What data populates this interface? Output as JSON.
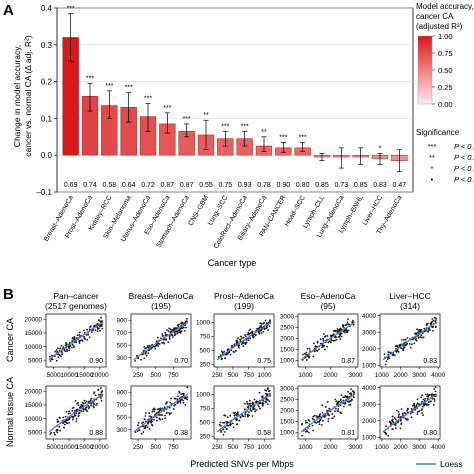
{
  "panel_a": {
    "label": "A",
    "ylabel_line1": "Change in model accuracy,",
    "ylabel_line2": "cancer vs. normal CA (Δ adj. R²)",
    "xlabel": "Cancer type",
    "colorbar_title": [
      "Model accuracy,",
      "cancer CA",
      "(adjusted R²)"
    ],
    "significance_title": "Significance",
    "significance_items": [
      {
        "stars": "***",
        "text": "P < 0."
      },
      {
        "stars": "**",
        "text": "P < 0."
      },
      {
        "stars": "*",
        "text": "P < 0."
      },
      {
        "stars": "•",
        "text": "P < 0."
      }
    ]
  },
  "panel_b": {
    "label": "B",
    "row_labels": [
      "Cancer CA",
      "Normal tissue CA"
    ],
    "xlabel": "Predicted SNVs per Mbps",
    "legend_label": "Loess"
  },
  "chart_data": [
    {
      "type": "bar",
      "title": "",
      "xlabel": "Cancer type",
      "ylabel": "Change in model accuracy, cancer vs. normal CA (Δ adj. R²)",
      "ylim": [
        -0.1,
        0.4
      ],
      "yticks": [
        -0.1,
        0.0,
        0.1,
        0.2,
        0.3,
        0.4
      ],
      "ytick_labels": [
        "–0.1",
        "0.0",
        "0.1",
        "0.2",
        "0.3",
        "0.4"
      ],
      "grid": true,
      "colorbar": {
        "min": 0,
        "max": 1,
        "ticks": [
          "0.00",
          "0.25",
          "0.50",
          "0.75",
          "1.00"
        ],
        "low_color": "#fdecec",
        "high_color": "#d7191c"
      },
      "categories": [
        "Breast–AdenoCa",
        "Prost–AdenoCa",
        "Kidney–RCC",
        "Skin–Melanoma",
        "Uterus–AdenoCa",
        "Eso–AdenoCa",
        "Stomach–AdenoCa",
        "CNS–GBM",
        "Lung–SCC",
        "ColoRect–AdenoCa",
        "Biliary–AdenoCa",
        "PAN–CANCER",
        "Head–SCC",
        "Lymph–CLL",
        "Lung–AdenoCa",
        "Lymph–BNHL",
        "Liver–HCC",
        "Thy–AdenoCa"
      ],
      "values": [
        0.32,
        0.16,
        0.135,
        0.13,
        0.105,
        0.085,
        0.065,
        0.055,
        0.045,
        0.045,
        0.025,
        0.02,
        0.02,
        -0.005,
        -0.005,
        -0.005,
        -0.01,
        -0.015
      ],
      "error_low": [
        0.255,
        0.12,
        0.1,
        0.09,
        0.065,
        0.06,
        0.05,
        0.015,
        0.025,
        0.025,
        0.01,
        0.008,
        0.01,
        -0.015,
        -0.035,
        -0.025,
        -0.025,
        -0.045
      ],
      "error_high": [
        0.385,
        0.195,
        0.175,
        0.17,
        0.14,
        0.115,
        0.085,
        0.095,
        0.065,
        0.065,
        0.05,
        0.035,
        0.035,
        0.005,
        0.02,
        0.02,
        0.005,
        0.015
      ],
      "adj_r2": [
        "0.69",
        "0.74",
        "0.58",
        "0.64",
        "0.72",
        "0.87",
        "0.87",
        "0.55",
        "0.75",
        "0.93",
        "0.78",
        "0.90",
        "0.80",
        "0.85",
        "0.73",
        "0.85",
        "0.83",
        "0.47"
      ],
      "adj_r2_values": [
        0.69,
        0.74,
        0.58,
        0.64,
        0.72,
        0.87,
        0.87,
        0.55,
        0.75,
        0.93,
        0.78,
        0.9,
        0.8,
        0.85,
        0.73,
        0.85,
        0.83,
        0.47
      ],
      "significance": [
        "***",
        "***",
        "***",
        "***",
        "***",
        "***",
        "***",
        "**",
        "***",
        "***",
        "**",
        "***",
        "***",
        "",
        "",
        "",
        "*",
        ""
      ]
    },
    {
      "type": "scatter",
      "panels": [
        {
          "title": "Pan–cancer",
          "subtitle": "(2517 genomes)",
          "row": "Cancer CA",
          "xlim": [
            2500,
            22000
          ],
          "ylim": [
            2500,
            22000
          ],
          "xticks": [
            5000,
            10000,
            15000,
            20000
          ],
          "yticks": [
            5000,
            10000,
            15000,
            20000
          ],
          "r2": "0.90"
        },
        {
          "title": "Breast–AdenoCa",
          "subtitle": "(195)",
          "row": "Cancer CA",
          "xlim": [
            150,
            1000
          ],
          "ylim": [
            150,
            1000
          ],
          "xticks": [
            250,
            500,
            750
          ],
          "yticks": [
            300,
            500,
            700,
            900
          ],
          "r2": "0.70"
        },
        {
          "title": "Prost–AdenoCa",
          "subtitle": "(199)",
          "row": "Cancer CA",
          "xlim": [
            200,
            1150
          ],
          "ylim": [
            200,
            1150
          ],
          "xticks": [
            250,
            500,
            750,
            1000
          ],
          "yticks": [
            250,
            500,
            750,
            1000
          ],
          "r2": "0.75"
        },
        {
          "title": "Eso–AdenoCa",
          "subtitle": "(95)",
          "row": "Cancer CA",
          "xlim": [
            700,
            3100
          ],
          "ylim": [
            700,
            3100
          ],
          "xticks": [
            1000,
            2000,
            3000
          ],
          "yticks": [
            1000,
            1500,
            2000,
            2500,
            3000
          ],
          "r2": "0.87"
        },
        {
          "title": "Liver–HCC",
          "subtitle": "(314)",
          "row": "Cancer CA",
          "xlim": [
            900,
            4100
          ],
          "ylim": [
            900,
            4100
          ],
          "xticks": [
            1000,
            2000,
            3000,
            4000
          ],
          "yticks": [
            1000,
            2000,
            3000,
            4000
          ],
          "r2": "0.83"
        },
        {
          "title": "",
          "subtitle": "",
          "row": "Normal tissue CA",
          "xlim": [
            2500,
            22000
          ],
          "ylim": [
            2500,
            22000
          ],
          "xticks": [
            5000,
            10000,
            15000,
            20000
          ],
          "yticks": [
            5000,
            10000,
            15000,
            20000
          ],
          "r2": "0.88"
        },
        {
          "title": "",
          "subtitle": "",
          "row": "Normal tissue CA",
          "xlim": [
            150,
            1000
          ],
          "ylim": [
            150,
            1000
          ],
          "xticks": [
            250,
            500,
            750
          ],
          "yticks": [
            300,
            500,
            700,
            900
          ],
          "r2": "0.38"
        },
        {
          "title": "",
          "subtitle": "",
          "row": "Normal tissue CA",
          "xlim": [
            200,
            1150
          ],
          "ylim": [
            200,
            1150
          ],
          "xticks": [
            250,
            500,
            750,
            1000
          ],
          "yticks": [
            250,
            500,
            750,
            1000
          ],
          "r2": "0.58"
        },
        {
          "title": "",
          "subtitle": "",
          "row": "Normal tissue CA",
          "xlim": [
            700,
            3100
          ],
          "ylim": [
            700,
            3100
          ],
          "xticks": [
            1000,
            2000,
            3000
          ],
          "yticks": [
            1000,
            1500,
            2000,
            2500,
            3000
          ],
          "r2": "0.81"
        },
        {
          "title": "",
          "subtitle": "",
          "row": "Normal tissue CA",
          "xlim": [
            900,
            4100
          ],
          "ylim": [
            900,
            4100
          ],
          "xticks": [
            1000,
            2000,
            3000,
            4000
          ],
          "yticks": [
            1000,
            2000,
            3000,
            4000
          ],
          "r2": "0.80"
        }
      ]
    }
  ]
}
